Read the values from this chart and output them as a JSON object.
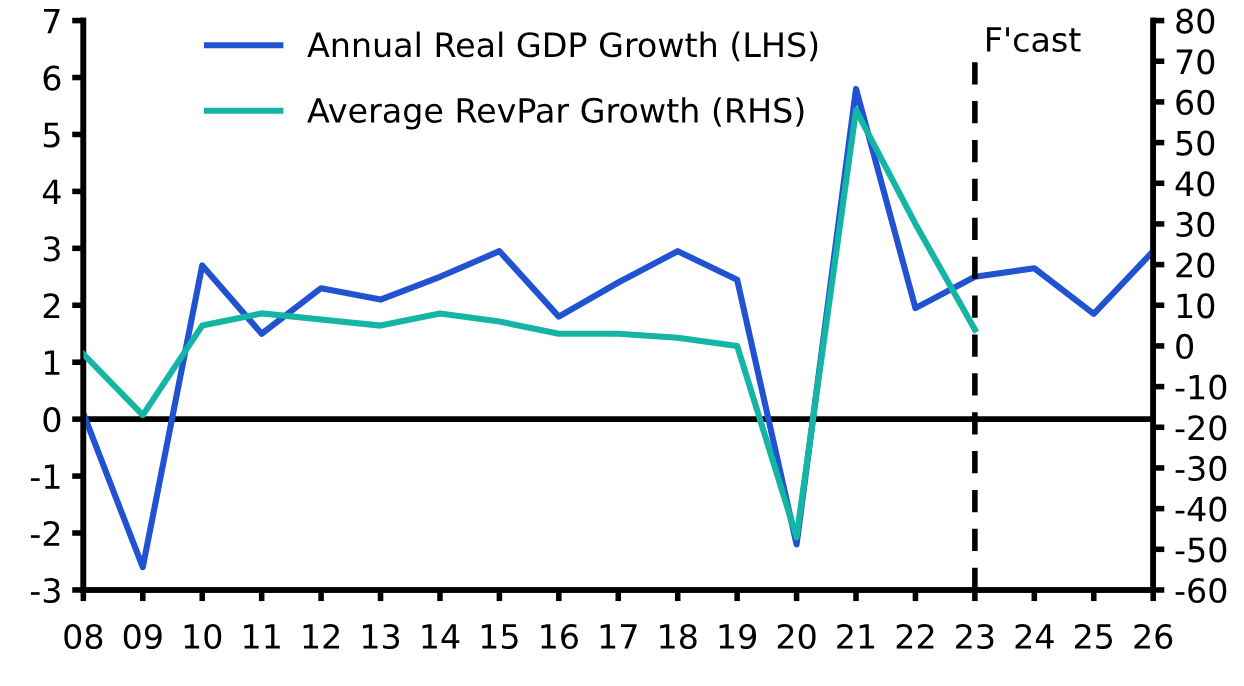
{
  "chart_data": {
    "type": "line",
    "categories": [
      "08",
      "09",
      "10",
      "11",
      "12",
      "13",
      "14",
      "15",
      "16",
      "17",
      "18",
      "19",
      "20",
      "21",
      "22",
      "23",
      "24",
      "25",
      "26"
    ],
    "series": [
      {
        "name": "Annual Real GDP Growth (LHS)",
        "color": "#2152d2",
        "values": [
          0.1,
          -2.6,
          2.7,
          1.5,
          2.3,
          2.1,
          2.5,
          2.95,
          1.8,
          2.4,
          2.95,
          2.45,
          -2.2,
          5.8,
          1.95,
          2.5,
          2.65,
          1.85,
          2.95
        ]
      },
      {
        "name": "Average RevPar Growth (RHS)",
        "color": "#14b5a5",
        "axis": "y2",
        "values": [
          -2,
          -17,
          5,
          8,
          6.5,
          5,
          8,
          6,
          3,
          3,
          2,
          0,
          -47,
          58,
          30,
          4,
          null,
          null,
          null
        ]
      }
    ],
    "ylim": [
      -3,
      7
    ],
    "yticks": [
      -3,
      -2,
      -1,
      0,
      1,
      2,
      3,
      4,
      5,
      6,
      7
    ],
    "y2lim": [
      -60,
      80
    ],
    "y2ticks": [
      -60,
      -50,
      -40,
      -30,
      -20,
      -10,
      0,
      10,
      20,
      30,
      40,
      50,
      60,
      70,
      80
    ],
    "ref_lines": [
      {
        "axis": "y",
        "value": 0,
        "color": "#000000",
        "line_style": "solid"
      },
      {
        "axis": "x",
        "value": "23",
        "label": "F'cast",
        "color": "#000000",
        "line_style": "dashed"
      }
    ],
    "legend": "top left",
    "grid": false,
    "marker": "none",
    "line_style": "solid"
  }
}
